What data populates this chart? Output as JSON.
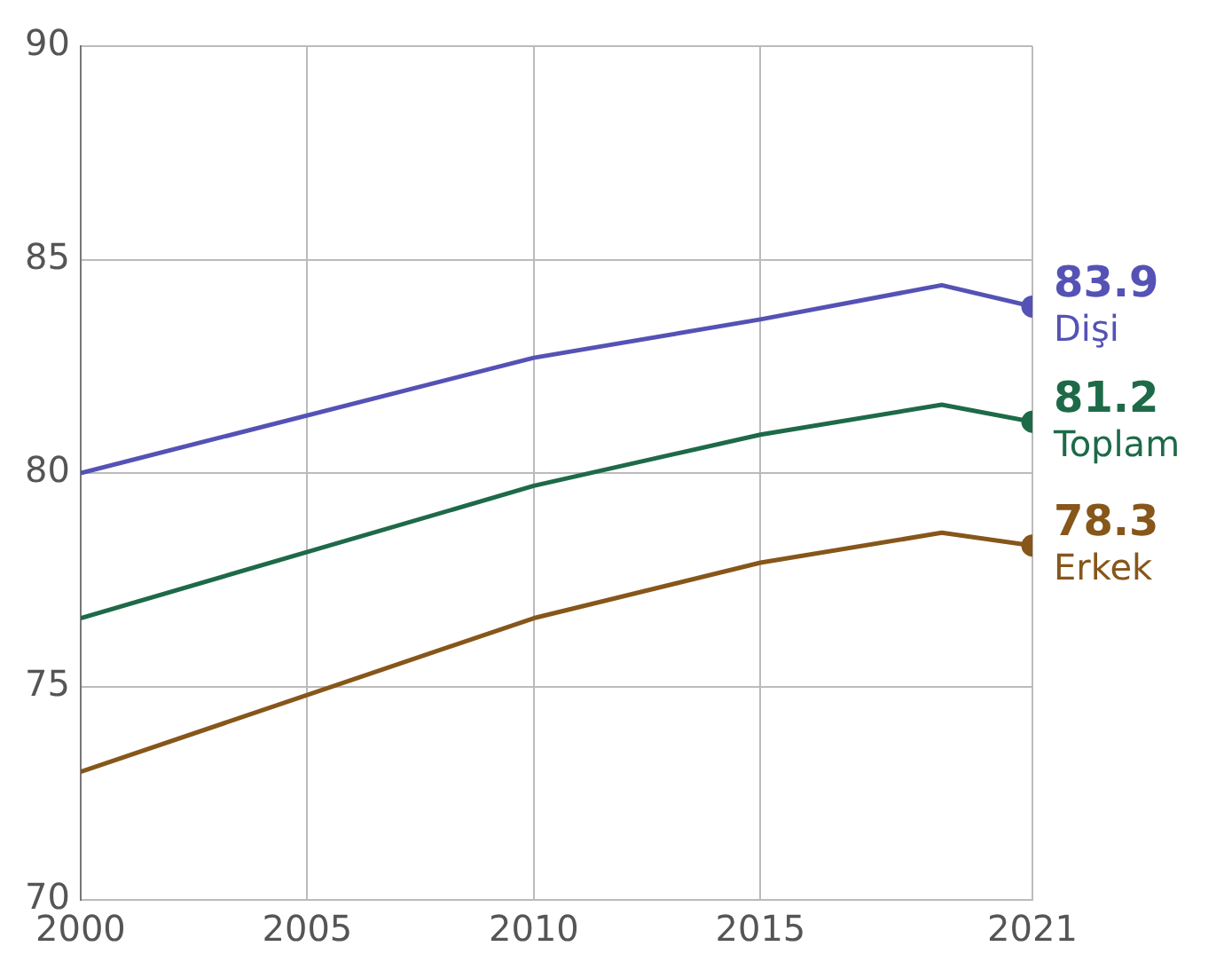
{
  "chart_data": {
    "type": "line",
    "x": [
      2000,
      2010,
      2015,
      2019,
      2021
    ],
    "xlim": [
      2000,
      2021
    ],
    "xticks": [
      2000,
      2005,
      2010,
      2015,
      2021
    ],
    "ylim": [
      70,
      90
    ],
    "yticks": [
      70,
      75,
      80,
      85,
      90
    ],
    "grid": true,
    "legend": false,
    "line_style": "solid",
    "series": [
      {
        "name": "Dişi",
        "color": "#5552b5",
        "values": [
          80.0,
          82.7,
          83.6,
          84.4,
          83.9
        ],
        "value_labels": [
          null,
          null,
          null,
          null,
          "83.9"
        ]
      },
      {
        "name": "Toplam",
        "color": "#1e6a48",
        "values": [
          76.6,
          79.7,
          80.9,
          81.6,
          81.2
        ],
        "value_labels": [
          null,
          null,
          null,
          null,
          "81.2"
        ]
      },
      {
        "name": "Erkek",
        "color": "#86561a",
        "values": [
          73.0,
          76.6,
          77.9,
          78.6,
          78.3
        ],
        "value_labels": [
          null,
          null,
          null,
          null,
          "78.3"
        ]
      }
    ]
  }
}
